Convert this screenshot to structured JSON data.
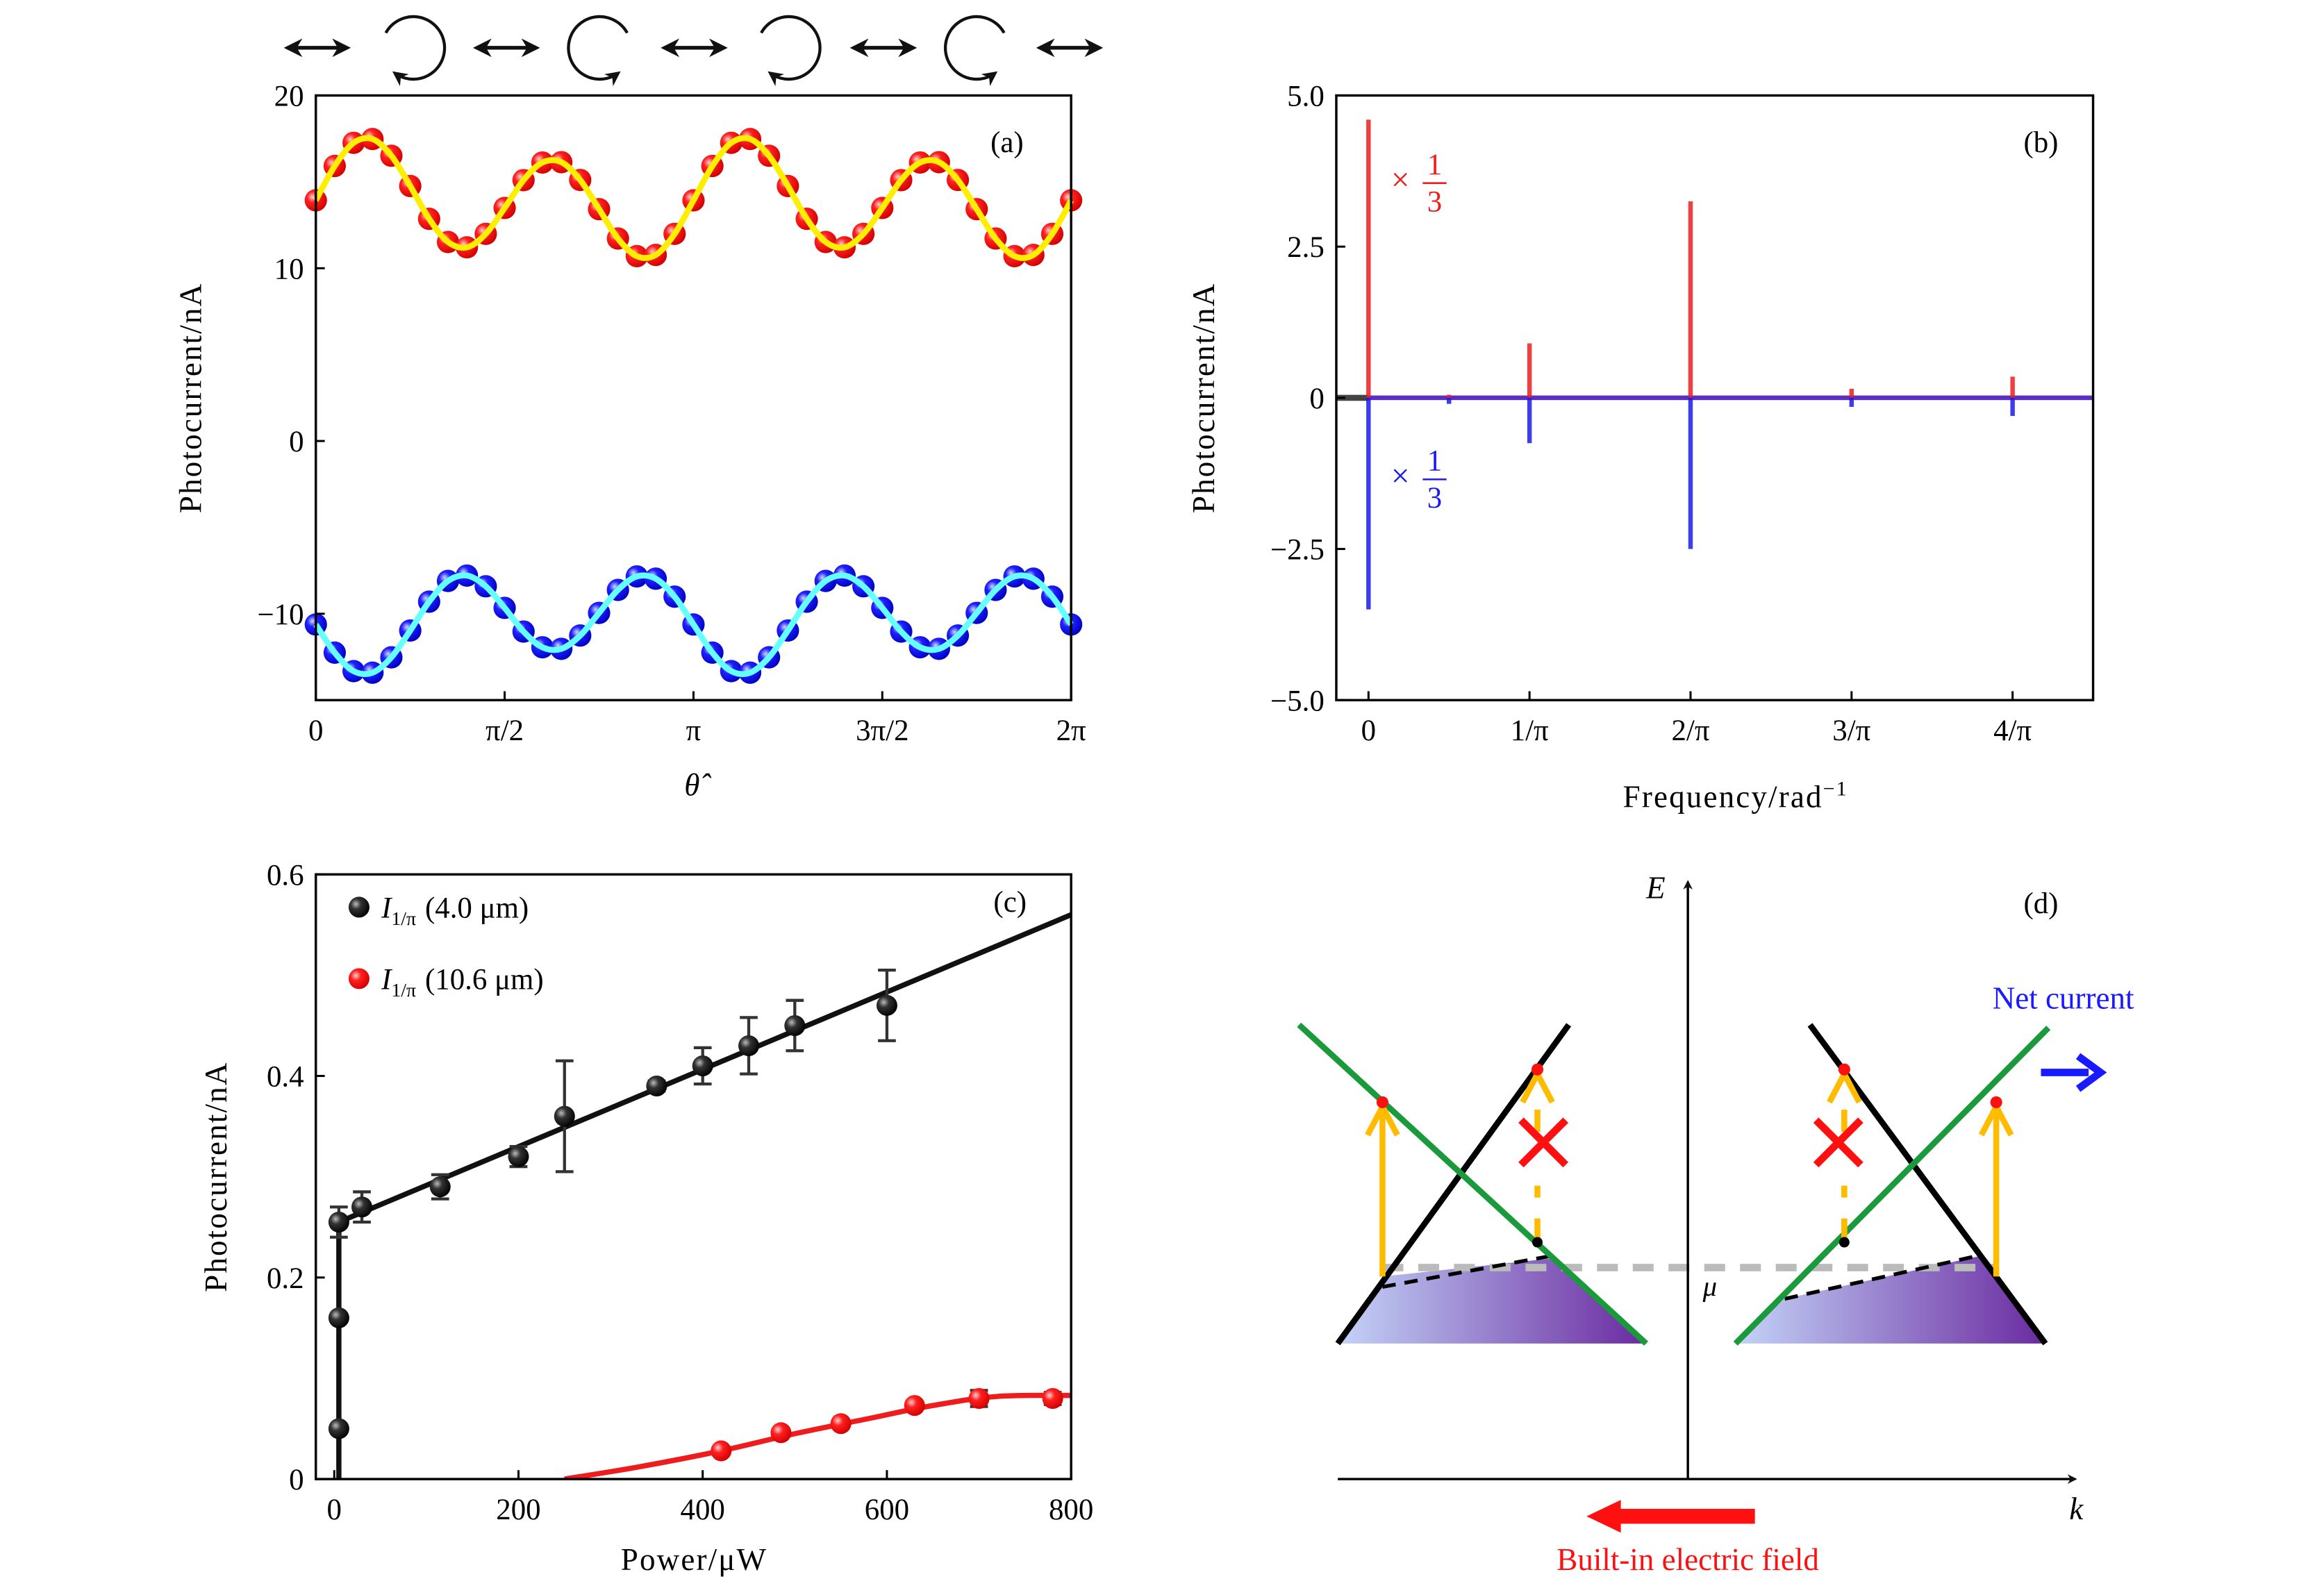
{
  "figure": {
    "polarization_sequence": [
      "linear",
      "left-circular",
      "linear",
      "right-circular",
      "linear",
      "left-circular",
      "linear",
      "right-circular",
      "linear"
    ]
  },
  "chart_data": [
    {
      "label": "(a)",
      "type": "scatter",
      "xlabel": "θ̂",
      "ylabel": "Photocurrent/nA",
      "x_unit": "π",
      "xlim": [
        0,
        2
      ],
      "ylim": [
        -15,
        20
      ],
      "grid": false,
      "xticks": [
        0,
        0.5,
        1,
        1.5,
        2
      ],
      "xtick_labels": [
        "0",
        "π/2",
        "π",
        "3π/2",
        "2π"
      ],
      "yticks": [
        20,
        10,
        0,
        -10
      ],
      "ytick_labels": [
        "20",
        "10",
        "0",
        "−10"
      ],
      "series": [
        {
          "color": "#ee1c1c",
          "fit_color": "#ffee00",
          "x": [
            0,
            0.05,
            0.1,
            0.15,
            0.2,
            0.25,
            0.3,
            0.35,
            0.4,
            0.45,
            0.5,
            0.55,
            0.6,
            0.65,
            0.7,
            0.75,
            0.8,
            0.85,
            0.9,
            0.95,
            1,
            1.05,
            1.1,
            1.15,
            1.2,
            1.25,
            1.3,
            1.35,
            1.4,
            1.45,
            1.5,
            1.55,
            1.6,
            1.65,
            1.7,
            1.75,
            1.8,
            1.85,
            1.9,
            1.95,
            2
          ],
          "y": [
            13.93,
            15.92,
            17.26,
            17.48,
            16.51,
            14.76,
            12.86,
            11.52,
            11.21,
            11.99,
            13.49,
            15.1,
            16.12,
            16.14,
            15.11,
            13.42,
            11.72,
            10.7,
            10.77,
            11.99,
            13.93,
            15.92,
            17.26,
            17.48,
            16.51,
            14.76,
            12.86,
            11.52,
            11.21,
            11.99,
            13.49,
            15.1,
            16.12,
            16.14,
            15.11,
            13.42,
            11.72,
            10.7,
            10.77,
            11.99,
            13.93
          ]
        },
        {
          "color": "#1a1aee",
          "fit_color": "#66ffff",
          "x": [
            0,
            0.05,
            0.1,
            0.15,
            0.2,
            0.25,
            0.3,
            0.35,
            0.4,
            0.45,
            0.5,
            0.55,
            0.6,
            0.65,
            0.7,
            0.75,
            0.8,
            0.85,
            0.9,
            0.95,
            1,
            1.05,
            1.1,
            1.15,
            1.2,
            1.25,
            1.3,
            1.35,
            1.4,
            1.45,
            1.5,
            1.55,
            1.6,
            1.65,
            1.7,
            1.75,
            1.8,
            1.85,
            1.9,
            1.95,
            2
          ],
          "y": [
            -10.62,
            -12.25,
            -13.32,
            -13.41,
            -12.52,
            -10.97,
            -9.3,
            -8.1,
            -7.79,
            -8.41,
            -9.66,
            -11.03,
            -11.94,
            -12.03,
            -11.26,
            -9.95,
            -8.62,
            -7.84,
            -7.97,
            -9.01,
            -10.62,
            -12.25,
            -13.32,
            -13.41,
            -12.52,
            -10.97,
            -9.3,
            -8.1,
            -7.79,
            -8.41,
            -9.66,
            -11.03,
            -11.94,
            -12.03,
            -11.26,
            -9.95,
            -8.62,
            -7.84,
            -7.97,
            -9.01,
            -10.62
          ]
        }
      ]
    },
    {
      "label": "(b)",
      "type": "bar",
      "xlabel": "Frequency/rad",
      "xlabel_superscript": "−1",
      "ylabel": "Photocurrent/nA",
      "x_unit": "1/π",
      "xlim": [
        -0.2,
        4.5
      ],
      "ylim": [
        -5,
        5
      ],
      "grid": false,
      "xticks": [
        0,
        1,
        2,
        3,
        4
      ],
      "xtick_labels": [
        "0",
        "1/π",
        "2/π",
        "3/π",
        "4/π"
      ],
      "yticks": [
        5,
        2.5,
        0,
        -2.5,
        -5
      ],
      "ytick_labels": [
        "5.0",
        "2.5",
        "0",
        "−2.5",
        "−5.0"
      ],
      "series": [
        {
          "color": "#ee1c1c",
          "x": [
            0,
            0.5,
            1,
            2,
            3,
            4
          ],
          "y": [
            4.6,
            0.05,
            0.9,
            3.25,
            0.15,
            0.35
          ]
        },
        {
          "color": "#1a1aee",
          "x": [
            0,
            0.5,
            1,
            2,
            3,
            4
          ],
          "y": [
            -3.5,
            -0.1,
            -0.75,
            -2.5,
            -0.15,
            -0.3
          ]
        }
      ],
      "annotations": [
        {
          "color": "#ee1c1c",
          "prefix": "×",
          "numerator": "1",
          "denominator": "3",
          "y": 3.6
        },
        {
          "color": "#1a1aee",
          "prefix": "×",
          "numerator": "1",
          "denominator": "3",
          "y": -1.3
        }
      ]
    },
    {
      "label": "(c)",
      "type": "scatter",
      "xlabel": "Power/μW",
      "ylabel": "Photocurrent/nA",
      "xlim": [
        -20,
        800
      ],
      "ylim": [
        0,
        0.6
      ],
      "grid": false,
      "xticks": [
        0,
        200,
        400,
        600,
        800
      ],
      "xtick_labels": [
        "0",
        "200",
        "400",
        "600",
        "800"
      ],
      "yticks": [
        0.6,
        0.4,
        0.2,
        0
      ],
      "ytick_labels": [
        "0.6",
        "0.4",
        "0.2",
        "0"
      ],
      "legend_position": "top-left",
      "series": [
        {
          "symbol": "I",
          "subscript": "1/π",
          "name_suffix": "(4.0 μm)",
          "color": "#111111",
          "x": [
            5,
            5,
            5,
            30,
            115,
            200,
            250,
            350,
            400,
            450,
            500,
            600
          ],
          "y": [
            0.05,
            0.16,
            0.255,
            0.27,
            0.29,
            0.32,
            0.36,
            0.39,
            0.41,
            0.43,
            0.45,
            0.47
          ],
          "yerr": [
            0,
            0,
            0.015,
            0.015,
            0.012,
            0.01,
            0.055,
            0.005,
            0.018,
            0.028,
            0.025,
            0.035
          ],
          "fit": {
            "x": [
              5,
              5,
              800
            ],
            "y": [
              0,
              0.255,
              0.56
            ]
          }
        },
        {
          "symbol": "I",
          "subscript": "1/π",
          "name_suffix": "(10.6 μm)",
          "color": "#ee1c1c",
          "x": [
            420,
            485,
            550,
            630,
            700,
            780
          ],
          "y": [
            0.028,
            0.046,
            0.055,
            0.073,
            0.08,
            0.08
          ],
          "yerr": [
            0,
            0,
            0,
            0,
            0.008,
            0.006
          ],
          "fit": {
            "x": [
              250,
              330,
              420,
              500,
              580,
              650,
              720,
              800
            ],
            "y": [
              0,
              0.012,
              0.028,
              0.045,
              0.06,
              0.073,
              0.082,
              0.083
            ]
          }
        }
      ]
    }
  ],
  "diagram": {
    "label": "(d)",
    "energy_axis": "E",
    "momentum_axis": "k",
    "chemical_potential": "μ",
    "net_current_label": "Net current",
    "field_label": "Built-in electric field",
    "colors": {
      "band_black": "#000000",
      "band_green": "#1a9a3a",
      "transition": "#ffbb00",
      "forbidden": "#ff1010",
      "net_current": "#1a1aff",
      "field": "#ff1010",
      "fill_left": "#c4d4f8",
      "fill_right": "#6a2aa0"
    }
  }
}
